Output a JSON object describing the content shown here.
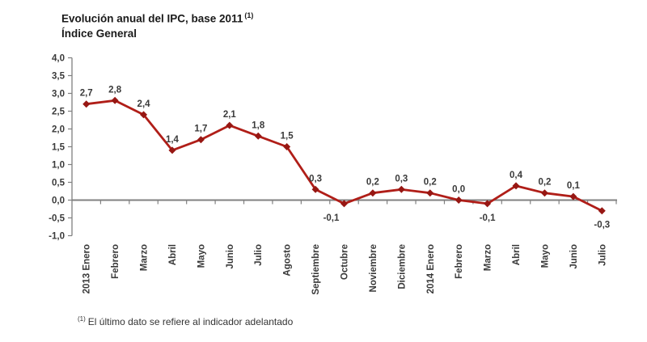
{
  "title": {
    "line1": "Evolución anual del IPC, base 2011",
    "superscript": "(1)",
    "line2": "Índice General"
  },
  "footnote": {
    "superscript": "(1)",
    "text": "El último dato se refiere al indicador adelantado"
  },
  "chart_data": {
    "type": "line",
    "title": "Evolución anual del IPC, base 2011 (1) — Índice General",
    "categories": [
      "2013 Enero",
      "Febrero",
      "Marzo",
      "Abril",
      "Mayo",
      "Junio",
      "Julio",
      "Agosto",
      "Septiembre",
      "Octubre",
      "Noviembre",
      "Diciembre",
      "2014 Enero",
      "Febrero",
      "Marzo",
      "Abril",
      "Mayo",
      "Junio",
      "Julio"
    ],
    "series": [
      {
        "name": "Índice General",
        "values": [
          2.7,
          2.8,
          2.4,
          1.4,
          1.7,
          2.1,
          1.8,
          1.5,
          0.3,
          -0.1,
          0.2,
          0.3,
          0.2,
          0.0,
          -0.1,
          0.4,
          0.2,
          0.1,
          -0.3
        ]
      }
    ],
    "value_labels": [
      "2,7",
      "2,8",
      "2,4",
      "1,4",
      "1,7",
      "2,1",
      "1,8",
      "1,5",
      "0,3",
      "-0,1",
      "0,2",
      "0,3",
      "0,2",
      "0,0",
      "-0,1",
      "0,4",
      "0,2",
      "0,1",
      "-0,3"
    ],
    "y_axis": {
      "min": -1.0,
      "max": 4.0,
      "step": 0.5,
      "tick_labels": [
        "4,0",
        "3,5",
        "3,0",
        "2,5",
        "2,0",
        "1,5",
        "1,0",
        "0,5",
        "0,0",
        "-0,5",
        "-1,0"
      ]
    },
    "xlabel": "",
    "ylabel": "",
    "grid": false,
    "legend": "none",
    "marker": "diamond",
    "line_color": "#B01E18",
    "marker_color": "#971713",
    "axis_color": "#808080",
    "label_color": "#3A3A3A"
  }
}
